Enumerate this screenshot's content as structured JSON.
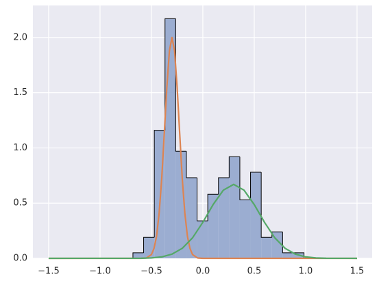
{
  "chart_data": {
    "type": "histogram",
    "bins": [
      -0.68,
      -0.576,
      -0.472,
      -0.368,
      -0.264,
      -0.16,
      -0.056,
      0.048,
      0.152,
      0.256,
      0.36,
      0.464,
      0.568,
      0.672,
      0.776,
      0.88,
      0.984
    ],
    "values": [
      0.05,
      0.19,
      1.16,
      2.17,
      0.97,
      0.73,
      0.34,
      0.58,
      0.73,
      0.92,
      0.53,
      0.78,
      0.19,
      0.24,
      0.05,
      0.05
    ],
    "color": "#9badd1",
    "edge_color": "#000000",
    "series": [
      {
        "type": "line",
        "color": "#dd8452",
        "x": [
          -1.5,
          -0.6,
          -0.55,
          -0.5,
          -0.475,
          -0.45,
          -0.425,
          -0.4,
          -0.375,
          -0.35,
          -0.325,
          -0.3,
          -0.275,
          -0.25,
          -0.225,
          -0.2,
          -0.175,
          -0.15,
          -0.125,
          -0.1,
          -0.05,
          0.0,
          1.5
        ],
        "values": [
          0,
          0,
          0.003,
          0.034,
          0.09,
          0.2,
          0.41,
          0.72,
          1.13,
          1.55,
          1.88,
          2.0,
          1.88,
          1.55,
          1.13,
          0.72,
          0.41,
          0.2,
          0.09,
          0.034,
          0.003,
          0,
          0
        ]
      },
      {
        "type": "line",
        "color": "#55a868",
        "x": [
          -1.5,
          -0.6,
          -0.5,
          -0.4,
          -0.3,
          -0.2,
          -0.1,
          0.0,
          0.1,
          0.2,
          0.3,
          0.4,
          0.5,
          0.6,
          0.7,
          0.8,
          0.9,
          1.0,
          1.1,
          1.2,
          1.5
        ],
        "values": [
          0,
          0.001,
          0.004,
          0.013,
          0.038,
          0.091,
          0.186,
          0.326,
          0.487,
          0.618,
          0.67,
          0.618,
          0.487,
          0.326,
          0.186,
          0.091,
          0.038,
          0.013,
          0.004,
          0.001,
          0
        ]
      }
    ],
    "xlim": [
      -1.653,
      1.647
    ],
    "ylim": [
      0,
      2.29
    ],
    "xticks": [
      {
        "value": -1.5,
        "label": "−1.5"
      },
      {
        "value": -1.0,
        "label": "−1.0"
      },
      {
        "value": -0.5,
        "label": "−0.5"
      },
      {
        "value": 0,
        "label": "0.0"
      },
      0.5,
      {
        "value": 1.0,
        "label": "1.0"
      },
      1.5
    ],
    "yticks": [
      {
        "value": 0,
        "label": "0.0"
      },
      0.5,
      {
        "value": 1.0,
        "label": "1.0"
      },
      1.5,
      {
        "value": 2.0,
        "label": "2.0"
      }
    ],
    "grid": true
  }
}
